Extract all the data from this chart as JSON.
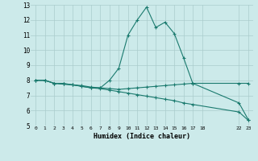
{
  "title": "",
  "xlabel": "Humidex (Indice chaleur)",
  "bg_color": "#cceaea",
  "line_color": "#1a7a6e",
  "grid_color": "#aacccc",
  "xlim": [
    -0.5,
    23.5
  ],
  "ylim": [
    5,
    13
  ],
  "xticks": [
    0,
    1,
    2,
    3,
    4,
    5,
    6,
    7,
    8,
    9,
    10,
    11,
    12,
    13,
    14,
    15,
    16,
    17,
    18,
    22,
    23
  ],
  "xtick_labels": [
    "0",
    "1",
    "2",
    "3",
    "4",
    "5",
    "6",
    "7",
    "8",
    "9",
    "10",
    "11",
    "12",
    "13",
    "14",
    "15",
    "16",
    "17",
    "18",
    "22",
    "23"
  ],
  "yticks": [
    5,
    6,
    7,
    8,
    9,
    10,
    11,
    12,
    13
  ],
  "ytick_labels": [
    "5",
    "6",
    "7",
    "8",
    "9",
    "10",
    "11",
    "12",
    "13"
  ],
  "series": [
    {
      "x": [
        0,
        1,
        2,
        3,
        4,
        5,
        6,
        7,
        8,
        9,
        10,
        11,
        12,
        13,
        14,
        15,
        16,
        17,
        22,
        23
      ],
      "y": [
        8.0,
        8.0,
        7.8,
        7.8,
        7.7,
        7.6,
        7.5,
        7.5,
        8.0,
        8.8,
        11.0,
        12.0,
        12.85,
        11.5,
        11.85,
        11.1,
        9.5,
        7.8,
        6.5,
        5.4
      ]
    },
    {
      "x": [
        0,
        1,
        2,
        3,
        4,
        5,
        6,
        7,
        8,
        9,
        10,
        11,
        12,
        13,
        14,
        15,
        16,
        17,
        22,
        23
      ],
      "y": [
        8.0,
        8.0,
        7.8,
        7.75,
        7.7,
        7.65,
        7.55,
        7.5,
        7.45,
        7.4,
        7.45,
        7.5,
        7.55,
        7.6,
        7.65,
        7.7,
        7.75,
        7.8,
        7.8,
        7.8
      ]
    },
    {
      "x": [
        0,
        1,
        2,
        3,
        4,
        5,
        6,
        7,
        8,
        9,
        10,
        11,
        12,
        13,
        14,
        15,
        16,
        17,
        22,
        23
      ],
      "y": [
        8.0,
        8.0,
        7.8,
        7.75,
        7.7,
        7.6,
        7.5,
        7.45,
        7.35,
        7.25,
        7.15,
        7.05,
        6.95,
        6.85,
        6.75,
        6.65,
        6.5,
        6.4,
        5.9,
        5.35
      ]
    }
  ]
}
